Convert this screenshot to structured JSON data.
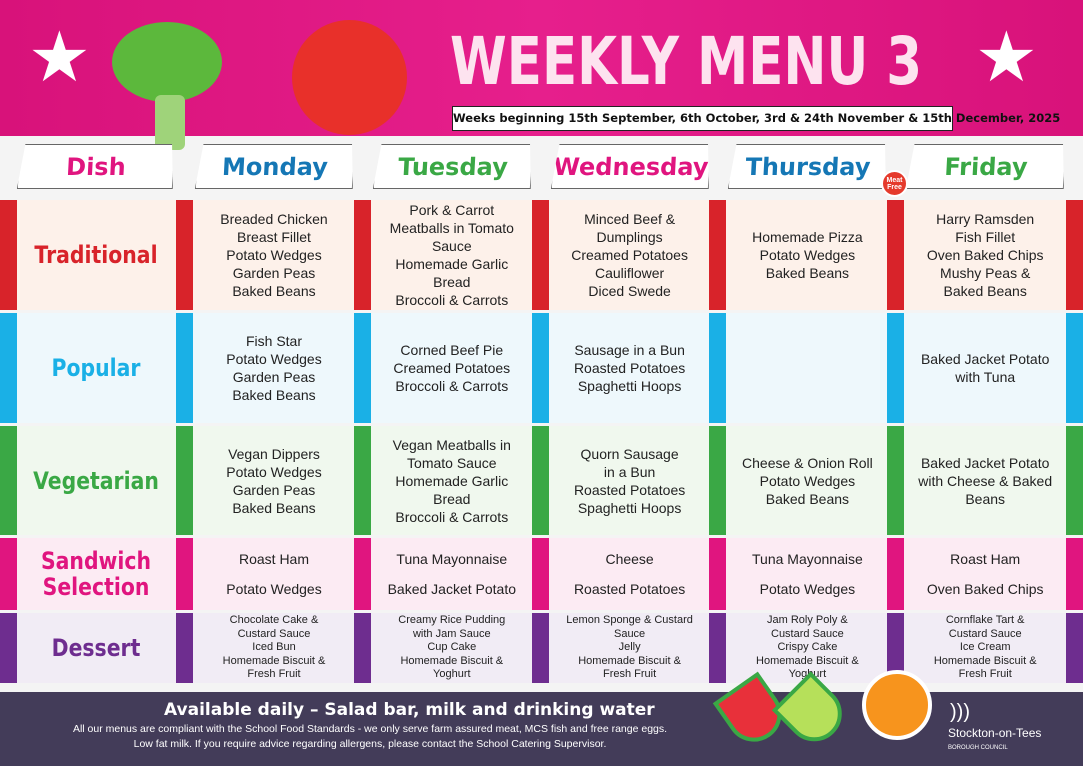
{
  "header": {
    "title": "WEEKLY MENU 3",
    "subtitle": "Weeks beginning 15th September, 6th October, 3rd & 24th November & 15th December, 2025",
    "badge": "Meat Free"
  },
  "columns": [
    {
      "label": "Dish",
      "color": "#e0157f"
    },
    {
      "label": "Monday",
      "color": "#1577b5"
    },
    {
      "label": "Tuesday",
      "color": "#3aa845"
    },
    {
      "label": "Wednesday",
      "color": "#e0157f"
    },
    {
      "label": "Thursday",
      "color": "#1577b5"
    },
    {
      "label": "Friday",
      "color": "#3aa845"
    }
  ],
  "rows": [
    {
      "label": "Traditional",
      "color": "#d8232a",
      "bg": "#fdf1ea",
      "cells": [
        [
          "Breaded Chicken",
          "Breast Fillet",
          "Potato Wedges",
          "Garden Peas",
          "Baked Beans"
        ],
        [
          "Pork & Carrot",
          "Meatballs in Tomato",
          "Sauce",
          "Homemade Garlic",
          "Bread",
          "Broccoli & Carrots"
        ],
        [
          "Minced Beef &",
          "Dumplings",
          "Creamed Potatoes",
          "Cauliflower",
          "Diced Swede"
        ],
        [
          "Homemade Pizza",
          "Potato Wedges",
          "Baked Beans"
        ],
        [
          "Harry Ramsden",
          "Fish Fillet",
          "Oven Baked Chips",
          "Mushy Peas &",
          "Baked Beans"
        ]
      ]
    },
    {
      "label": "Popular",
      "color": "#1ab0e6",
      "bg": "#eef8fc",
      "cells": [
        [
          "Fish Star",
          "Potato Wedges",
          "Garden Peas",
          "Baked Beans"
        ],
        [
          "Corned Beef Pie",
          "Creamed Potatoes",
          "Broccoli & Carrots"
        ],
        [
          "Sausage in a Bun",
          "Roasted Potatoes",
          "Spaghetti Hoops"
        ],
        [],
        [
          "Baked Jacket Potato",
          "with Tuna"
        ]
      ]
    },
    {
      "label": "Vegetarian",
      "color": "#3aa845",
      "bg": "#f0f8ee",
      "cells": [
        [
          "Vegan Dippers",
          "Potato Wedges",
          "Garden Peas",
          "Baked Beans"
        ],
        [
          "Vegan Meatballs in",
          "Tomato Sauce",
          "Homemade Garlic",
          "Bread",
          "Broccoli & Carrots"
        ],
        [
          "Quorn Sausage",
          "in a Bun",
          "Roasted Potatoes",
          "Spaghetti Hoops"
        ],
        [
          "Cheese & Onion Roll",
          "Potato Wedges",
          "Baked Beans"
        ],
        [
          "Baked Jacket Potato",
          "with Cheese & Baked",
          "Beans"
        ]
      ]
    },
    {
      "label": "Sandwich Selection",
      "color": "#e0157f",
      "bg": "#fcebf3",
      "cells": [
        [
          "Roast Ham",
          "Potato Wedges"
        ],
        [
          "Tuna Mayonnaise",
          "Baked Jacket Potato"
        ],
        [
          "Cheese",
          "Roasted Potatoes"
        ],
        [
          "Tuna Mayonnaise",
          "Potato Wedges"
        ],
        [
          "Roast Ham",
          "Oven Baked Chips"
        ]
      ]
    },
    {
      "label": "Dessert",
      "color": "#6e2d8f",
      "bg": "#f1ecf5",
      "cells": [
        [
          "Chocolate Cake &",
          "Custard Sauce",
          "Iced Bun",
          "Homemade Biscuit &",
          "Fresh Fruit"
        ],
        [
          "Creamy Rice Pudding",
          "with Jam Sauce",
          "Cup Cake",
          "Homemade Biscuit &",
          "Yoghurt"
        ],
        [
          "Lemon Sponge & Custard",
          "Sauce",
          "Jelly",
          "Homemade Biscuit &",
          "Fresh Fruit"
        ],
        [
          "Jam Roly Poly &",
          "Custard Sauce",
          "Crispy Cake",
          "Homemade Biscuit &",
          "Yoghurt"
        ],
        [
          "Cornflake Tart &",
          "Custard Sauce",
          "Ice Cream",
          "Homemade Biscuit &",
          "Fresh Fruit"
        ]
      ]
    }
  ],
  "footer": {
    "available": "Available daily – Salad bar, milk and drinking water",
    "note1": "All our menus are compliant with the School Food Standards - we only serve farm assured meat, MCS fish and free range eggs.",
    "note2": "Low fat milk. If you require advice regarding allergens, please contact the School Catering Supervisor.",
    "logo_name": "Stockton-on-Tees",
    "logo_sub": "BOROUGH COUNCIL"
  }
}
